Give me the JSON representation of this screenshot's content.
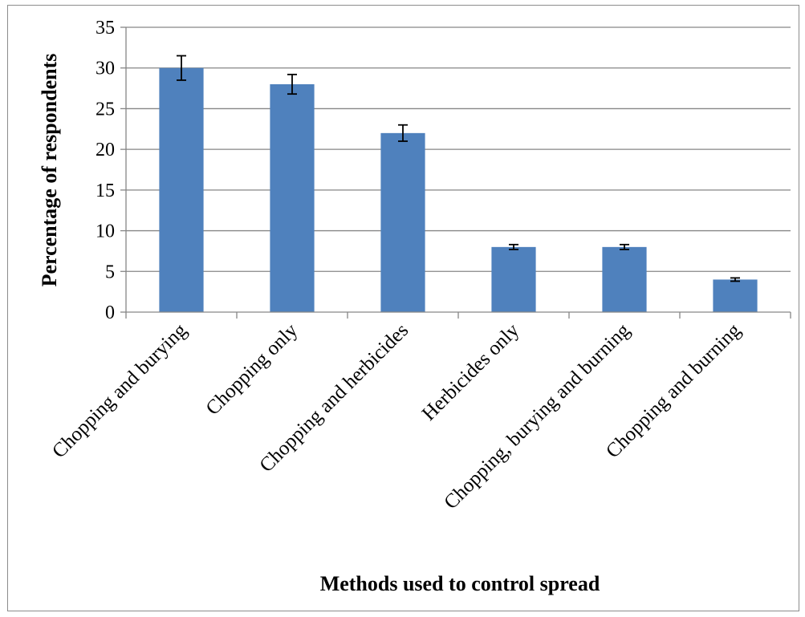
{
  "chart_data": {
    "type": "bar",
    "title": "",
    "xlabel": "Methods used to control spread",
    "ylabel": "Percentage of respondents",
    "categories": [
      "Chopping and burying",
      "Chopping only",
      "Chopping and herbicides",
      "Herbicides only",
      "Chopping, burying and burning",
      "Chopping and burning"
    ],
    "values": [
      30,
      28,
      22,
      8,
      8,
      4
    ],
    "error_bars": [
      1.5,
      1.2,
      1.0,
      0.3,
      0.3,
      0.2
    ],
    "ylim": [
      0,
      35
    ],
    "yticks": [
      0,
      5,
      10,
      15,
      20,
      25,
      30,
      35
    ],
    "grid": true,
    "legend": "none",
    "bar_color": "#4F81BD",
    "gridline_color": "#868686"
  }
}
